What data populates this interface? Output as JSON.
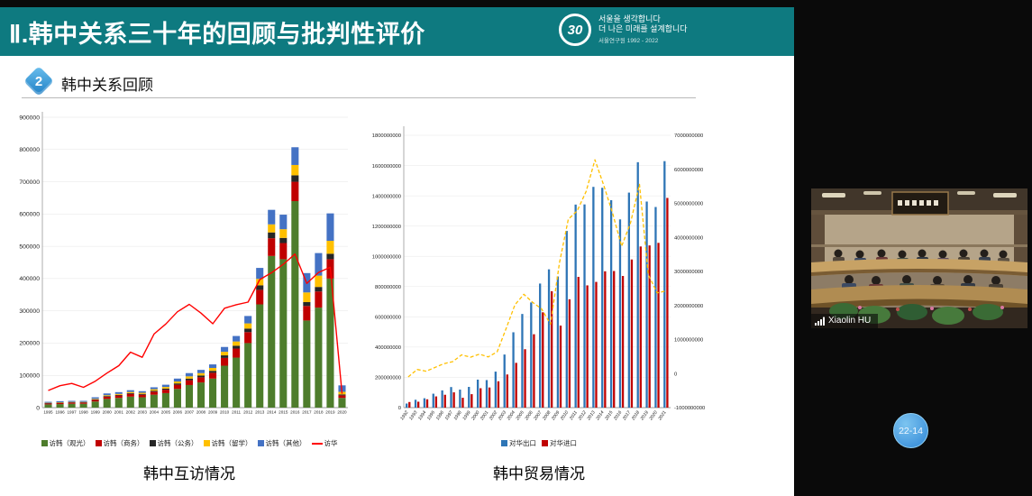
{
  "slide": {
    "header": {
      "title": "Ⅱ.韩中关系三十年的回顾与批判性评价",
      "logo_number": "30",
      "logo_line1": "서울을 생각합니다",
      "logo_line2": "더 나은 미래를 설계합니다",
      "logo_line3": "서울연구원 1992 - 2022"
    },
    "section": {
      "number": "2",
      "title": "韩中关系回顾"
    }
  },
  "video": {
    "participant_name": "Xiaolin HU"
  },
  "overlay": {
    "badge_text": "22-14"
  },
  "colors": {
    "header_teal": "#0e7a80",
    "badge_blue": "#1d7dc4",
    "time_badge_blue": "#3f93dd",
    "slide_bg": "#ffffff",
    "stage_bg": "#0a0a0a"
  },
  "chart_data": [
    {
      "type": "bar",
      "subtype": "stacked-bars-with-line",
      "title": "韩中互访情况",
      "categories": [
        "1995",
        "1996",
        "1997",
        "1998",
        "1999",
        "2000",
        "2001",
        "2002",
        "2003",
        "2004",
        "2005",
        "2006",
        "2007",
        "2008",
        "2009",
        "2010",
        "2011",
        "2012",
        "2013",
        "2014",
        "2015",
        "2016",
        "2017",
        "2018",
        "2019",
        "2020"
      ],
      "series": [
        {
          "name": "访韩（观光）",
          "color": "#4e7d2c",
          "values": [
            10000,
            11000,
            12000,
            12000,
            19000,
            27000,
            30000,
            34000,
            32000,
            40000,
            45000,
            58000,
            70000,
            78000,
            90000,
            130000,
            155000,
            200000,
            320000,
            470000,
            460000,
            640000,
            270000,
            310000,
            400000,
            30000
          ]
        },
        {
          "name": "访韩（商务）",
          "color": "#c00000",
          "values": [
            3000,
            3500,
            3500,
            3500,
            5000,
            7000,
            7500,
            8500,
            8000,
            9500,
            10500,
            13000,
            15000,
            16000,
            18000,
            24000,
            28000,
            34000,
            45000,
            55000,
            50000,
            60000,
            45000,
            50000,
            60000,
            8000
          ]
        },
        {
          "name": "访韩（公务）",
          "color": "#262626",
          "values": [
            1000,
            1000,
            1000,
            1000,
            1500,
            2000,
            2000,
            2500,
            2500,
            3000,
            3500,
            4000,
            5000,
            5500,
            6000,
            8000,
            9000,
            11000,
            14000,
            18000,
            16000,
            20000,
            12000,
            14000,
            17000,
            3000
          ]
        },
        {
          "name": "访韩（留学）",
          "color": "#ffc000",
          "values": [
            1000,
            1200,
            1200,
            1200,
            1800,
            2500,
            3000,
            3500,
            3500,
            4500,
            5000,
            6000,
            7000,
            7500,
            9000,
            11000,
            13000,
            16000,
            20000,
            25000,
            27000,
            32000,
            30000,
            35000,
            40000,
            8000
          ]
        },
        {
          "name": "访韩（其他）",
          "color": "#4472c4",
          "values": [
            3000,
            3300,
            3300,
            3300,
            4700,
            5500,
            5500,
            5500,
            5000,
            6000,
            7000,
            9000,
            10000,
            10000,
            11000,
            15000,
            17000,
            23000,
            34000,
            45000,
            45000,
            55000,
            60000,
            70000,
            85000,
            20000
          ]
        }
      ],
      "line_series": {
        "name": "访华",
        "color": "#ff0000",
        "values": [
          53000,
          68000,
          75000,
          63000,
          82000,
          107000,
          130000,
          172000,
          156000,
          228000,
          259000,
          297000,
          320000,
          293000,
          260000,
          308000,
          319000,
          327000,
          397000,
          418000,
          444000,
          476000,
          385000,
          419000,
          435000,
          43000
        ]
      },
      "ylim": [
        0,
        900000
      ],
      "ytick": 100000,
      "grid": true,
      "legend_position": "bottom"
    },
    {
      "type": "bar",
      "subtype": "grouped-bars-with-line",
      "title": "韩中贸易情况",
      "categories": [
        "1992",
        "1993",
        "1994",
        "1995",
        "1996",
        "1997",
        "1998",
        "1999",
        "2000",
        "2001",
        "2002",
        "2003",
        "2004",
        "2005",
        "2006",
        "2007",
        "2008",
        "2009",
        "2010",
        "2011",
        "2012",
        "2013",
        "2014",
        "2015",
        "2016",
        "2017",
        "2018",
        "2019",
        "2020",
        "2021"
      ],
      "series": [
        {
          "name": "对华出口",
          "color": "#2e75b6",
          "values": [
            27000000,
            52000000,
            62000000,
            92000000,
            114000000,
            136000000,
            119000000,
            137000000,
            185000000,
            182000000,
            238000000,
            351000000,
            498000000,
            619000000,
            695000000,
            820000000,
            914000000,
            867000000,
            1168000000,
            1342000000,
            1343000000,
            1459000000,
            1453000000,
            1371000000,
            1244000000,
            1421000000,
            1622000000,
            1362000000,
            1326000000,
            1629000000
          ]
        },
        {
          "name": "对华进口",
          "color": "#c00000",
          "values": [
            37000000,
            39000000,
            55000000,
            74000000,
            85000000,
            101000000,
            65000000,
            89000000,
            128000000,
            133000000,
            174000000,
            219000000,
            296000000,
            386000000,
            485000000,
            630000000,
            769000000,
            542000000,
            716000000,
            864000000,
            808000000,
            831000000,
            901000000,
            903000000,
            870000000,
            979000000,
            1065000000,
            1072000000,
            1089000000,
            1386000000
          ]
        }
      ],
      "line_series": {
        "name": "",
        "color": "#ffc000",
        "dashed": true,
        "axis": "right",
        "values": [
          -100000000,
          120000000,
          70000000,
          180000000,
          290000000,
          350000000,
          550000000,
          480000000,
          570000000,
          490000000,
          640000000,
          1320000000,
          2020000000,
          2330000000,
          2090000000,
          1900000000,
          1450000000,
          3250000000,
          4530000000,
          4780000000,
          5350000000,
          6280000000,
          5520000000,
          4690000000,
          3740000000,
          4430000000,
          5560000000,
          2900000000,
          2370000000,
          2430000000
        ]
      },
      "ylim_left": [
        0,
        1800000000
      ],
      "ytick_left": 200000000,
      "ylim_right": [
        -1000000000,
        7000000000
      ],
      "ytick_right": 1000000000,
      "grid": true,
      "legend_position": "bottom"
    }
  ]
}
